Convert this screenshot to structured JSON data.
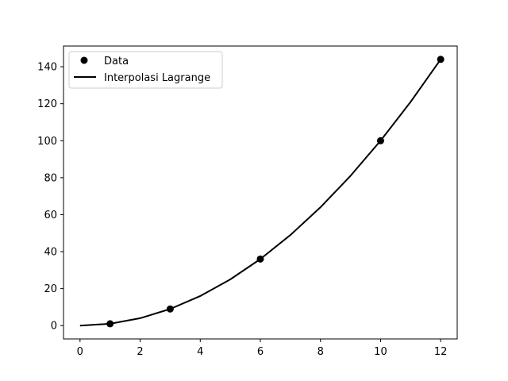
{
  "chart_data": {
    "type": "line",
    "title": "",
    "xlabel": "",
    "ylabel": "",
    "xlim": [
      -0.55,
      12.55
    ],
    "ylim": [
      -7.2,
      151.2
    ],
    "x_ticks": [
      0,
      2,
      4,
      6,
      8,
      10,
      12
    ],
    "x_tick_labels": [
      "0",
      "2",
      "4",
      "6",
      "8",
      "10",
      "12"
    ],
    "y_ticks": [
      0,
      20,
      40,
      60,
      80,
      100,
      120,
      140
    ],
    "y_tick_labels": [
      "0",
      "20",
      "40",
      "60",
      "80",
      "100",
      "120",
      "140"
    ],
    "grid": false,
    "legend_position": "upper-left",
    "series": [
      {
        "name": "Data",
        "kind": "scatter",
        "color": "#000000",
        "marker": "circle",
        "x": [
          1,
          3,
          6,
          10,
          12
        ],
        "y": [
          1,
          9,
          36,
          100,
          144
        ]
      },
      {
        "name": "Interpolasi Lagrange",
        "kind": "line",
        "color": "#000000",
        "x": [
          0,
          1,
          2,
          3,
          4,
          5,
          6,
          7,
          8,
          9,
          10,
          11,
          12
        ],
        "y": [
          0,
          1,
          4,
          9,
          16,
          25,
          36,
          49,
          64,
          81,
          100,
          121,
          144
        ]
      }
    ]
  }
}
